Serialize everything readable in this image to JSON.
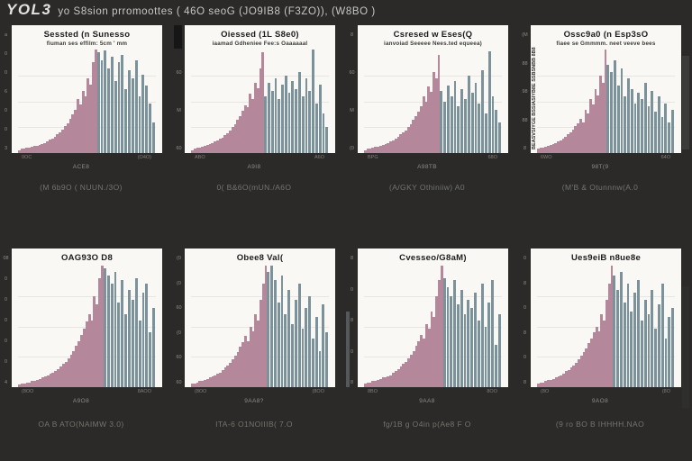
{
  "header": {
    "brand": "YOL3",
    "rest": "yo S8sion prromoottes ( 46O    seoG   (JO9IB8  (F3ZO)),   (W8BO )"
  },
  "colors": {
    "background": "#2b2a28",
    "panel": "#f9f8f5",
    "pink": "#b4879b",
    "teal": "#7b929b",
    "caption": "#73736e"
  },
  "chart_data": [
    {
      "slot": "r1c1",
      "type": "bar",
      "title": "Sessted (n Sunesso",
      "subtitle": "fiuman ses effilm: 5cm ' mm",
      "ylabel_rotated": "",
      "yticks": [
        "a",
        "0",
        "0",
        "6",
        "0",
        "0",
        "3"
      ],
      "xtick_left": "0OC",
      "xtick_right": "(O4O)",
      "xlabel": "ACE8",
      "caption": "(M 6b9O ( NUUN./3O)",
      "legend": "off",
      "grid": "faint",
      "series": [
        {
          "name": "left-pink",
          "values": [
            0.03,
            0.04,
            0.04,
            0.05,
            0.05,
            0.06,
            0.07,
            0.07,
            0.08,
            0.09,
            0.1,
            0.11,
            0.13,
            0.14,
            0.16,
            0.18,
            0.2,
            0.23,
            0.26,
            0.29,
            0.33,
            0.37,
            0.42,
            0.52,
            0.47,
            0.6,
            0.55,
            0.72,
            0.66,
            0.88,
            1.0
          ]
        },
        {
          "name": "right-teal",
          "values": [
            0.97,
            0.9,
            0.99,
            0.82,
            0.93,
            0.7,
            0.88,
            0.95,
            0.62,
            0.8,
            0.72,
            0.9,
            0.55,
            0.76,
            0.65,
            0.48,
            0.3
          ]
        }
      ]
    },
    {
      "slot": "r1c2",
      "type": "bar",
      "title": "Oiessed (1L S8e0)",
      "subtitle": "iaamad Gdheniee Fee:s Oaaaaaal",
      "ylabel_rotated": "",
      "yticks": [
        "69",
        "60",
        "M",
        "60"
      ],
      "xtick_left": "ABO",
      "xtick_right": "A6O",
      "xlabel": "A9I8",
      "caption": "0( B&6O(mUN./A6O",
      "legend": "off",
      "grid": "faint",
      "series": [
        {
          "name": "left-pink",
          "values": [
            0.03,
            0.04,
            0.05,
            0.05,
            0.06,
            0.07,
            0.08,
            0.09,
            0.1,
            0.11,
            0.12,
            0.14,
            0.15,
            0.17,
            0.19,
            0.22,
            0.25,
            0.28,
            0.32,
            0.36,
            0.41,
            0.46,
            0.44,
            0.57,
            0.52,
            0.68,
            0.63,
            0.82,
            0.97
          ]
        },
        {
          "name": "right-teal",
          "values": [
            0.55,
            0.68,
            0.6,
            0.72,
            0.52,
            0.66,
            0.75,
            0.58,
            0.7,
            0.62,
            0.78,
            0.55,
            0.72,
            0.6,
            1.0,
            0.48,
            0.66,
            0.38,
            0.25
          ]
        }
      ]
    },
    {
      "slot": "r1c3",
      "type": "bar",
      "title": "Csresed w Eses(Q",
      "subtitle": "ianvoiad Seeeee Nees.ted equeea)",
      "ylabel_rotated": "",
      "yticks": [
        "8",
        "60",
        "M",
        "(0"
      ],
      "xtick_left": "BPG",
      "xtick_right": "68O",
      "xlabel": "A98TB",
      "caption": "(A/GKY Othiniiw) A0",
      "legend": "off",
      "grid": "faint",
      "series": [
        {
          "name": "left-pink",
          "values": [
            0.03,
            0.04,
            0.04,
            0.05,
            0.06,
            0.06,
            0.07,
            0.08,
            0.09,
            0.1,
            0.11,
            0.12,
            0.14,
            0.16,
            0.18,
            0.2,
            0.22,
            0.25,
            0.28,
            0.32,
            0.36,
            0.4,
            0.45,
            0.55,
            0.5,
            0.64,
            0.59,
            0.78,
            0.72,
            0.95
          ]
        },
        {
          "name": "right-teal",
          "values": [
            0.6,
            0.5,
            0.65,
            0.55,
            0.7,
            0.45,
            0.62,
            0.52,
            0.75,
            0.58,
            0.68,
            0.48,
            0.8,
            0.38,
            0.98,
            0.55,
            0.42,
            0.3
          ]
        }
      ]
    },
    {
      "slot": "r1c4",
      "type": "bar",
      "title": "Ossc9a0 (n Esp3sO",
      "subtitle": "fiaee se Gmmmm. neet veeve bees",
      "ylabel_rotated": "BEASVSIYGE BSSIASIYB8E SSBSNBB 8B8",
      "yticks": [
        "(M",
        "88",
        "98",
        "88",
        "8"
      ],
      "xtick_left": "6WO",
      "xtick_right": "64O",
      "xlabel": "98T(9",
      "caption": "(M'B & Otunnnw(A.0",
      "legend": "off",
      "grid": "faint",
      "series": [
        {
          "name": "left-pink",
          "values": [
            0.04,
            0.05,
            0.05,
            0.06,
            0.07,
            0.08,
            0.09,
            0.1,
            0.11,
            0.12,
            0.14,
            0.16,
            0.18,
            0.2,
            0.23,
            0.26,
            0.29,
            0.33,
            0.3,
            0.42,
            0.38,
            0.52,
            0.47,
            0.62,
            0.56,
            0.75,
            0.68,
            1.0
          ]
        },
        {
          "name": "right-teal",
          "values": [
            0.85,
            0.78,
            0.9,
            0.65,
            0.82,
            0.55,
            0.72,
            0.62,
            0.48,
            0.58,
            0.52,
            0.68,
            0.45,
            0.6,
            0.4,
            0.55,
            0.35,
            0.48,
            0.3,
            0.42
          ]
        }
      ]
    },
    {
      "slot": "r2c1",
      "type": "bar",
      "title": "OAG93O D8",
      "subtitle": "",
      "ylabel_rotated": "",
      "yticks": [
        "08",
        "0",
        "0",
        "0",
        "0",
        "0",
        "4"
      ],
      "xtick_left": "(8OO",
      "xtick_right": "8AOO",
      "xlabel": "A9O8",
      "caption": "OA B ATO(NAIMW 3.0)",
      "legend": "off",
      "grid": "faint",
      "series": [
        {
          "name": "left-pink",
          "values": [
            0.02,
            0.03,
            0.03,
            0.04,
            0.04,
            0.05,
            0.05,
            0.06,
            0.07,
            0.08,
            0.09,
            0.1,
            0.11,
            0.12,
            0.13,
            0.15,
            0.17,
            0.19,
            0.21,
            0.24,
            0.27,
            0.3,
            0.34,
            0.38,
            0.43,
            0.48,
            0.54,
            0.6,
            0.55,
            0.75,
            0.68,
            0.9,
            1.0
          ]
        },
        {
          "name": "right-teal",
          "values": [
            0.98,
            0.92,
            0.85,
            0.95,
            0.7,
            0.88,
            0.6,
            0.8,
            0.72,
            0.9,
            0.55,
            0.78,
            0.85,
            0.45,
            0.65
          ]
        }
      ]
    },
    {
      "slot": "r2c2",
      "type": "bar",
      "title": "Obee8 Val(",
      "subtitle": "",
      "ylabel_rotated": "",
      "yticks": [
        "(0",
        "(0",
        "60",
        "(0",
        "60",
        "60"
      ],
      "xtick_left": "(8OO",
      "xtick_right": "(8OO",
      "xlabel": "9AA8?",
      "caption": "ITA-6 O1NOIIIB( 7.O",
      "legend": "off",
      "grid": "faint",
      "series": [
        {
          "name": "left-pink",
          "values": [
            0.03,
            0.03,
            0.04,
            0.05,
            0.05,
            0.06,
            0.07,
            0.08,
            0.09,
            0.1,
            0.11,
            0.12,
            0.14,
            0.16,
            0.18,
            0.2,
            0.23,
            0.26,
            0.29,
            0.33,
            0.37,
            0.42,
            0.38,
            0.5,
            0.46,
            0.6,
            0.55,
            0.72,
            0.85,
            1.0
          ]
        },
        {
          "name": "right-teal",
          "values": [
            0.95,
            1.0,
            0.88,
            0.7,
            0.92,
            0.6,
            0.8,
            0.52,
            0.72,
            0.85,
            0.48,
            0.65,
            0.75,
            0.4,
            0.58,
            0.3,
            0.68,
            0.45
          ]
        }
      ]
    },
    {
      "slot": "r2c3",
      "type": "bar",
      "title": "Cvesseo/G8aM)",
      "subtitle": "",
      "ylabel_rotated": "",
      "yticks": [
        "8",
        "0",
        "8",
        "0",
        "8"
      ],
      "xtick_left": "8BO",
      "xtick_right": "8OO",
      "xlabel": "9AA8",
      "caption": "fg/1B g O4in p(Ae8 F O",
      "legend": "off",
      "grid": "faint",
      "series": [
        {
          "name": "left-pink",
          "values": [
            0.03,
            0.04,
            0.04,
            0.05,
            0.05,
            0.06,
            0.07,
            0.08,
            0.08,
            0.09,
            0.1,
            0.12,
            0.13,
            0.15,
            0.17,
            0.19,
            0.21,
            0.24,
            0.27,
            0.3,
            0.34,
            0.38,
            0.43,
            0.4,
            0.52,
            0.48,
            0.62,
            0.58,
            0.75,
            0.88,
            1.0
          ]
        },
        {
          "name": "right-teal",
          "values": [
            0.9,
            0.82,
            0.75,
            0.88,
            0.68,
            0.8,
            0.6,
            0.72,
            0.65,
            0.78,
            0.55,
            0.85,
            0.5,
            0.7,
            0.88,
            0.35,
            0.6
          ]
        }
      ]
    },
    {
      "slot": "r2c4",
      "type": "bar",
      "title": "Ues9eiB n8ue8e",
      "subtitle": "",
      "ylabel_rotated": "",
      "yticks": [
        "0",
        "8",
        "0",
        "8",
        "0",
        "8"
      ],
      "xtick_left": "(8O",
      "xtick_right": "(8O",
      "xlabel": "9AO8",
      "caption": "(9 ro BO B IHHHH.NAO",
      "legend": "off",
      "grid": "faint",
      "series": [
        {
          "name": "left-pink",
          "values": [
            0.03,
            0.04,
            0.04,
            0.05,
            0.06,
            0.06,
            0.07,
            0.08,
            0.09,
            0.1,
            0.11,
            0.13,
            0.14,
            0.16,
            0.18,
            0.2,
            0.23,
            0.26,
            0.29,
            0.32,
            0.36,
            0.4,
            0.45,
            0.5,
            0.46,
            0.6,
            0.55,
            0.72,
            0.85,
            1.0
          ]
        },
        {
          "name": "right-teal",
          "values": [
            0.92,
            0.8,
            0.95,
            0.7,
            0.85,
            0.62,
            0.78,
            0.88,
            0.55,
            0.72,
            0.6,
            0.8,
            0.48,
            0.68,
            0.85,
            0.4,
            0.58,
            0.65
          ]
        }
      ]
    }
  ]
}
